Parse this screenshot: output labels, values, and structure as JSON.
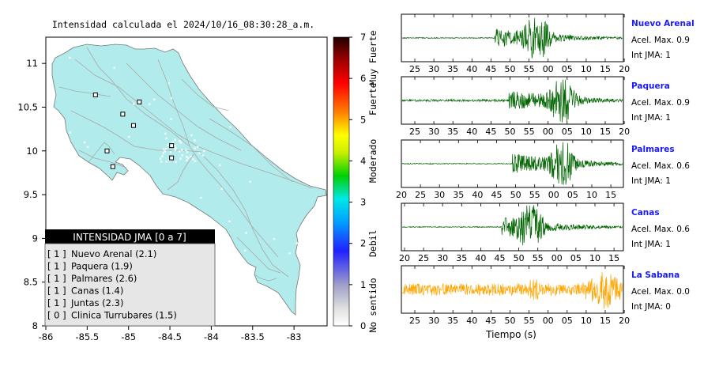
{
  "map": {
    "title": "Intensidad calculada el 2024/10/16_08:30:28_a.m.",
    "xticks": [
      "-86",
      "-85.5",
      "-85",
      "-84.5",
      "-84",
      "-83.5",
      "-83"
    ],
    "yticks": [
      "11",
      "10.5",
      "10",
      "9.5",
      "9",
      "8.5",
      "8"
    ],
    "land_color": "#b2ebeb"
  },
  "legend": {
    "title": "INTENSIDAD JMA [0 a 7]",
    "entries": [
      {
        "jma": "[ 1 ]",
        "station": "Nuevo Arenal (2.1)"
      },
      {
        "jma": "[ 1 ]",
        "station": "Paquera (1.9)"
      },
      {
        "jma": "[ 1 ]",
        "station": "Palmares (2.6)"
      },
      {
        "jma": "[ 1 ]",
        "station": "Canas (1.4)"
      },
      {
        "jma": "[ 1 ]",
        "station": "Juntas (2.3)"
      },
      {
        "jma": "[ 0 ]",
        "station": "Clinica Turrubares (1.5)"
      }
    ]
  },
  "colorbar": {
    "ticks": [
      "0",
      "1",
      "2",
      "3",
      "4",
      "5",
      "6",
      "7"
    ],
    "categories": [
      "No sentido",
      "Debil",
      "Moderado",
      "Fuerte",
      "Muy Fuerte"
    ]
  },
  "stations": [
    {
      "name": "Nuevo Arenal",
      "accel": "Acel. Max. 0.9",
      "int": "Int JMA: 1",
      "color": "#006400",
      "ticks": [
        "25",
        "30",
        "35",
        "40",
        "45",
        "50",
        "55",
        "00",
        "05",
        "10",
        "15",
        "20"
      ]
    },
    {
      "name": "Paquera",
      "accel": "Acel. Max. 0.9",
      "int": "Int JMA: 1",
      "color": "#006400",
      "ticks": [
        "25",
        "30",
        "35",
        "40",
        "45",
        "50",
        "55",
        "00",
        "05",
        "10",
        "15",
        "20"
      ]
    },
    {
      "name": "Palmares",
      "accel": "Acel. Max. 0.6",
      "int": "Int JMA: 1",
      "color": "#006400",
      "ticks": [
        "20",
        "25",
        "30",
        "35",
        "40",
        "45",
        "50",
        "55",
        "00",
        "05",
        "10",
        "15"
      ]
    },
    {
      "name": "Canas",
      "accel": "Acel. Max. 0.6",
      "int": "Int JMA: 1",
      "color": "#006400",
      "ticks": [
        "20",
        "25",
        "30",
        "35",
        "40",
        "45",
        "50",
        "55",
        "00",
        "05",
        "10",
        "15"
      ]
    },
    {
      "name": "La Sabana",
      "accel": "Acel. Max. 0.0",
      "int": "Int JMA: 0",
      "color": "#ffa500",
      "ticks": [
        "25",
        "30",
        "35",
        "40",
        "45",
        "50",
        "55",
        "00",
        "05",
        "10",
        "15",
        "20"
      ]
    }
  ],
  "xlabel": "Tiempo (s)",
  "chart_data": [
    {
      "type": "scatter",
      "title": "Intensidad calculada el 2024/10/16_08:30:28_a.m.",
      "xlim": [
        -86,
        -82.6
      ],
      "ylim": [
        8,
        11.3
      ],
      "legend_placement": "bottom-left",
      "series": [
        {
          "name": "INTENSIDAD JMA [0 a 7]",
          "points": [
            {
              "x": -85.4,
              "y": 10.64
            },
            {
              "x": -84.87,
              "y": 10.56
            },
            {
              "x": -85.07,
              "y": 10.42
            },
            {
              "x": -84.94,
              "y": 10.29
            },
            {
              "x": -84.48,
              "y": 10.06
            },
            {
              "x": -85.26,
              "y": 10.0
            },
            {
              "x": -84.48,
              "y": 9.92
            },
            {
              "x": -85.19,
              "y": 9.82
            }
          ]
        }
      ]
    },
    {
      "type": "heatmap",
      "title": "",
      "ylim": [
        0,
        7
      ],
      "ticks": [
        0,
        1,
        2,
        3,
        4,
        5,
        6,
        7
      ],
      "categories": [
        "No sentido",
        "Debil",
        "Moderado",
        "Fuerte",
        "Muy Fuerte"
      ]
    },
    {
      "type": "line",
      "title": "Nuevo Arenal",
      "xlabel": "",
      "tick_labels": [
        "25",
        "30",
        "35",
        "40",
        "45",
        "50",
        "55",
        "00",
        "05",
        "10",
        "15",
        "20"
      ],
      "onset": 46,
      "peak": 58,
      "peak_amplitude": 0.9,
      "annotations": [
        "Acel. Max. 0.9",
        "Int JMA: 1"
      ]
    },
    {
      "type": "line",
      "title": "Paquera",
      "xlabel": "",
      "tick_labels": [
        "25",
        "30",
        "35",
        "40",
        "45",
        "50",
        "55",
        "00",
        "05",
        "10",
        "15",
        "20"
      ],
      "onset": 50,
      "peak": 65,
      "peak_amplitude": 0.9,
      "annotations": [
        "Acel. Max. 0.9",
        "Int JMA: 1"
      ]
    },
    {
      "type": "line",
      "title": "Palmares",
      "xlabel": "",
      "tick_labels": [
        "20",
        "25",
        "30",
        "35",
        "40",
        "45",
        "50",
        "55",
        "00",
        "05",
        "10",
        "15"
      ],
      "onset": 51,
      "peak": 65,
      "peak_amplitude": 0.6,
      "annotations": [
        "Acel. Max. 0.6",
        "Int JMA: 1"
      ]
    },
    {
      "type": "line",
      "title": "Canas",
      "xlabel": "",
      "tick_labels": [
        "20",
        "25",
        "30",
        "35",
        "40",
        "45",
        "50",
        "55",
        "00",
        "05",
        "10",
        "15"
      ],
      "onset": 48,
      "peak": 56,
      "peak_amplitude": 0.6,
      "annotations": [
        "Acel. Max. 0.6",
        "Int JMA: 1"
      ]
    },
    {
      "type": "line",
      "title": "La Sabana",
      "xlabel": "Tiempo (s)",
      "tick_labels": [
        "25",
        "30",
        "35",
        "40",
        "45",
        "50",
        "55",
        "00",
        "05",
        "10",
        "15",
        "20"
      ],
      "onset": 20,
      "peak": 75,
      "peak_amplitude": 0.0,
      "annotations": [
        "Acel. Max. 0.0",
        "Int JMA: 0"
      ]
    }
  ]
}
